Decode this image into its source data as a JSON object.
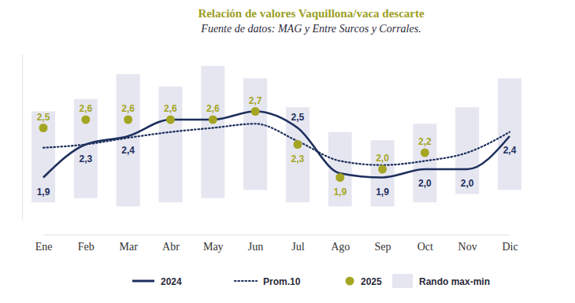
{
  "chart_data": {
    "type": "line",
    "title": "Relación de valores Vaquillona/vaca descarte",
    "subtitle": "Fuente de datos: MAG y Entre Surcos y Corrales.",
    "categories": [
      "Ene",
      "Feb",
      "Mar",
      "Abr",
      "May",
      "Jun",
      "Jul",
      "Ago",
      "Sep",
      "Oct",
      "Nov",
      "Dic"
    ],
    "ylim": [
      1.4,
      3.4
    ],
    "yticks": [],
    "tick_labels": "x",
    "grid": false,
    "legend": "bottom",
    "series": [
      {
        "name": "2024",
        "type": "line",
        "line_style": "solid",
        "color": "#1c2f5c",
        "values": [
          1.9,
          2.3,
          2.4,
          2.6,
          2.6,
          2.7,
          2.5,
          1.95,
          1.9,
          2.0,
          2.0,
          2.4
        ],
        "data_labels": true,
        "value_labels": [
          "1,9",
          "2,3",
          "2,4",
          null,
          null,
          null,
          "2,5",
          null,
          "1,9",
          "2,0",
          "2,0",
          "2,4"
        ]
      },
      {
        "name": "Prom.10",
        "type": "line",
        "line_style": "dotted",
        "color": "#1c2f5c",
        "values": [
          2.26,
          2.3,
          2.38,
          2.45,
          2.5,
          2.55,
          2.34,
          2.1,
          2.05,
          2.1,
          2.2,
          2.45
        ]
      },
      {
        "name": "2025",
        "type": "scatter",
        "marker": "circle",
        "color": "#a4a623",
        "values": [
          2.5,
          2.6,
          2.6,
          2.6,
          2.6,
          2.7,
          2.3,
          1.9,
          2.0,
          2.2,
          null,
          null
        ],
        "data_labels": true,
        "value_labels": [
          "2,5",
          "2,6",
          "2,6",
          "2,6",
          "2,6",
          "2,7",
          "2,3",
          "1,9",
          "2,0",
          "2,2",
          null,
          null
        ]
      },
      {
        "name": "Rando max-min",
        "type": "bar",
        "color": "#e6e6f1",
        "low": [
          1.6,
          1.65,
          1.55,
          1.6,
          1.65,
          1.75,
          1.6,
          1.55,
          1.55,
          1.6,
          1.7,
          1.75
        ],
        "high": [
          2.7,
          2.85,
          3.15,
          3.0,
          3.25,
          3.1,
          2.75,
          2.45,
          2.35,
          2.55,
          2.75,
          3.1
        ]
      }
    ]
  }
}
